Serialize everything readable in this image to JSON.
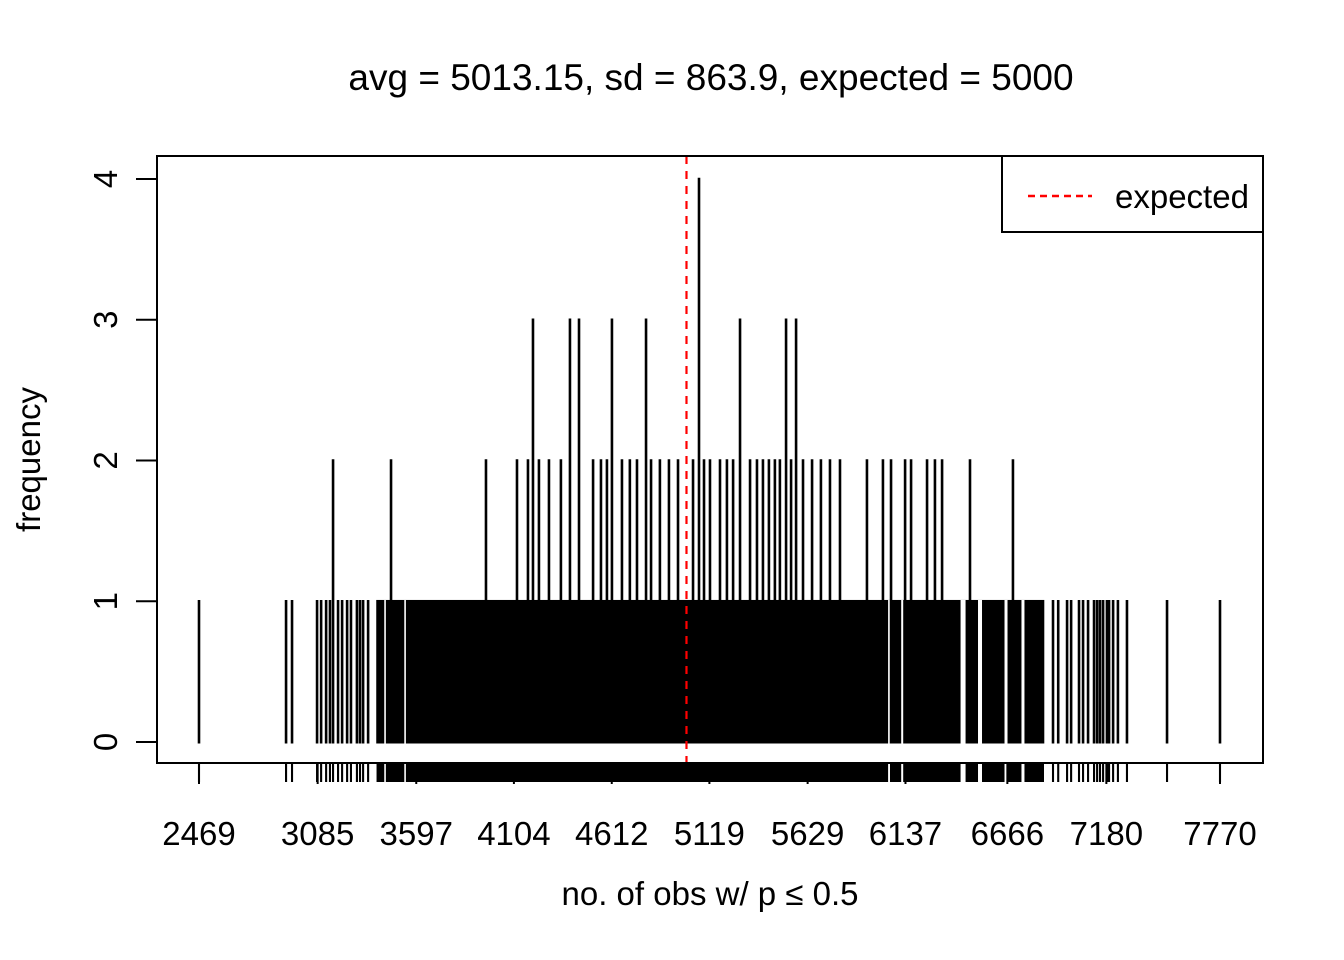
{
  "page": {
    "background": "#ffffff",
    "description_visible_text_only": true
  },
  "chart_data": {
    "type": "bar",
    "subtype": "frequency-spike-plot-with-rug",
    "title": "avg = 5013.15, sd = 863.9, expected = 5000",
    "xlabel": "no. of obs w/ p ≤ 0.5",
    "ylabel": "frequency",
    "stats": {
      "avg": 5013.15,
      "sd": 863.9,
      "expected": 5000
    },
    "x_ticks": [
      2469,
      3085,
      3597,
      4104,
      4612,
      5119,
      5629,
      6137,
      6666,
      7180,
      7770
    ],
    "y_ticks": [
      0,
      1,
      2,
      3,
      4
    ],
    "xlim": [
      2469,
      7770
    ],
    "ylim": [
      0,
      4
    ],
    "grid": false,
    "legend": {
      "position": "topright",
      "entries": [
        {
          "label": "expected",
          "color": "#ff0000",
          "line_style": "dashed"
        }
      ]
    },
    "expected_line": {
      "x": 5000,
      "color": "#ff0000",
      "style": "dashed"
    },
    "colors": {
      "spikes": "#000000",
      "expected_line": "#ff0000",
      "text": "#000000",
      "background": "#ffffff"
    },
    "series": {
      "height_4": [
        5065
      ],
      "height_3": [
        4203,
        4395,
        4442,
        4613,
        4790,
        5278,
        5517,
        5569
      ],
      "height_2": [
        3165,
        3466,
        3959,
        4120,
        4177,
        4234,
        4286,
        4348,
        4515,
        4556,
        4587,
        4665,
        4706,
        4743,
        4816,
        4862,
        4909,
        4956,
        5034,
        5091,
        5122,
        5174,
        5210,
        5242,
        5330,
        5366,
        5397,
        5428,
        5459,
        5485,
        5543,
        5605,
        5652,
        5698,
        5745,
        5797,
        5937,
        6020,
        6062,
        6135,
        6166,
        6249,
        6290,
        6327,
        6472,
        6695
      ],
      "height_1_isolated": [
        2469,
        2921,
        2952,
        3082,
        3103,
        3129,
        3149,
        3191,
        3212,
        3238,
        3258,
        3289,
        3305,
        3321,
        3347,
        6903,
        6930,
        6976,
        6997,
        7038,
        7059,
        7085,
        7116,
        7132,
        7147,
        7163,
        7183,
        7194,
        7215,
        7240,
        7287,
        7495,
        7770
      ],
      "height_1_dense_range": [
        3396,
        6851
      ],
      "dense_band_gaps": [
        [
          3435,
          1.6
        ],
        [
          3539,
          1.6
        ],
        [
          6052,
          2
        ],
        [
          6120,
          2
        ],
        [
          6436,
          5
        ],
        [
          6524,
          4
        ],
        [
          6659,
          3
        ],
        [
          6747,
          3
        ]
      ]
    },
    "rug": {
      "present": true,
      "side": "bottom"
    }
  }
}
